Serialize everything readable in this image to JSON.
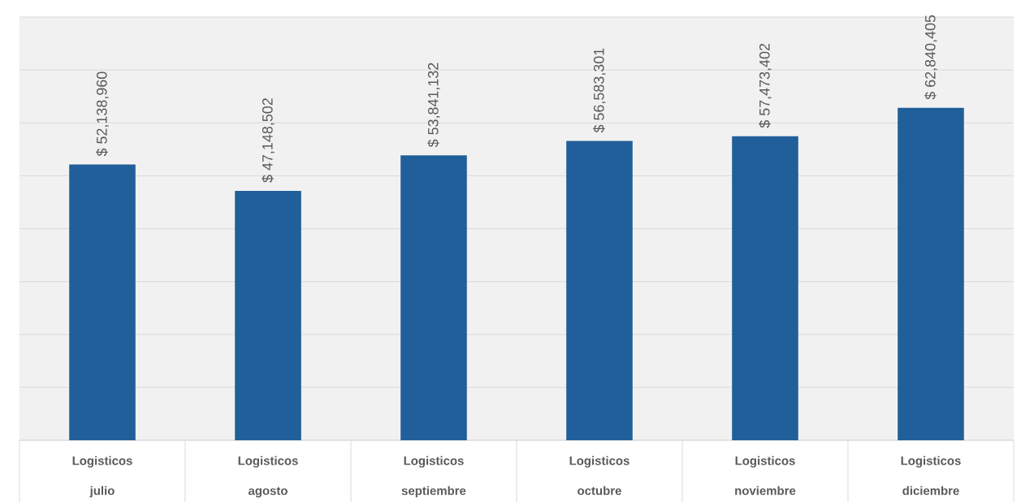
{
  "chart_data": {
    "type": "bar",
    "categories": [
      "Logisticos julio",
      "Logisticos agosto",
      "Logisticos septiembre",
      "Logisticos octubre",
      "Logisticos noviembre",
      "Logisticos diciembre"
    ],
    "values": [
      52138960,
      47148502,
      53841132,
      56583301,
      57473402,
      62840405
    ],
    "value_labels": [
      "$ 52,138,960",
      "$ 47,148,502",
      "$ 53,841,132",
      "$ 56,583,301",
      "$ 57,473,402",
      "$ 62,840,405"
    ],
    "color": "#215f9a",
    "ylim": [
      0,
      80000000
    ],
    "grid": "y",
    "tick_labels": "x"
  }
}
